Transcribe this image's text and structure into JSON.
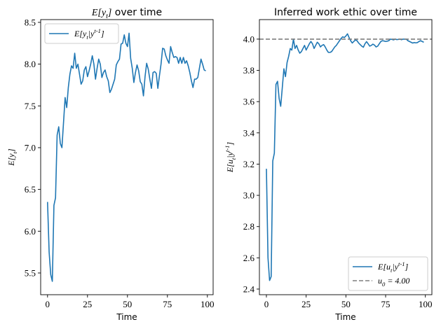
{
  "chart_data": [
    {
      "type": "line",
      "title": "E[y_t] over time",
      "xlabel": "Time",
      "ylabel": "E[y_t]",
      "xlim": [
        -4.3,
        103.6
      ],
      "ylim": [
        5.24,
        8.533
      ],
      "xticks": [
        0,
        25,
        50,
        75,
        100
      ],
      "yticks": [
        5.5,
        6.0,
        6.5,
        7.0,
        7.5,
        8.0,
        8.5
      ],
      "xtick_labels": [
        "0",
        "25",
        "50",
        "75",
        "100"
      ],
      "ytick_labels": [
        "5.5",
        "6.0",
        "6.5",
        "7.0",
        "7.5",
        "8.0",
        "8.5"
      ],
      "grid": false,
      "legend": "upper-left",
      "series": [
        {
          "name": "E[y_t|y^{t-1}]",
          "color": "#1f77b4",
          "style": "solid",
          "x_start": 0,
          "values": [
            6.35,
            5.75,
            5.48,
            5.4,
            6.31,
            6.4,
            7.15,
            7.25,
            7.05,
            7.0,
            7.3,
            7.6,
            7.48,
            7.72,
            7.88,
            7.98,
            7.95,
            8.13,
            7.95,
            8.0,
            7.88,
            7.76,
            7.8,
            7.93,
            7.97,
            7.85,
            7.92,
            8.0,
            8.1,
            8.0,
            7.82,
            7.95,
            8.06,
            8.0,
            7.84,
            7.9,
            7.93,
            7.85,
            7.8,
            7.66,
            7.7,
            7.76,
            7.82,
            7.99,
            8.03,
            8.06,
            8.24,
            8.25,
            8.35,
            8.25,
            8.21,
            8.37,
            8.07,
            7.95,
            7.78,
            7.9,
            7.99,
            7.92,
            7.79,
            7.76,
            7.62,
            7.85,
            8.01,
            7.94,
            7.82,
            7.71,
            7.9,
            7.91,
            7.89,
            7.71,
            7.86,
            8.0,
            8.19,
            8.18,
            8.1,
            8.05,
            8.01,
            8.21,
            8.14,
            8.08,
            8.09,
            8.08,
            8.01,
            8.08,
            8.01,
            8.08,
            8.01,
            8.04,
            7.98,
            7.9,
            7.8,
            7.72,
            7.82,
            7.82,
            7.84,
            7.95,
            8.06,
            8.0,
            7.93,
            7.92
          ]
        }
      ]
    },
    {
      "type": "line",
      "title": "Inferred work ethic over time",
      "xlabel": "Time",
      "ylabel": "E[u_t|y^{t-1}]",
      "xlim": [
        -4.4,
        104.1
      ],
      "ylim": [
        2.364,
        4.125
      ],
      "xticks": [
        0,
        25,
        50,
        75,
        100
      ],
      "yticks": [
        2.4,
        2.6,
        2.8,
        3.0,
        3.2,
        3.4,
        3.6,
        3.8,
        4.0
      ],
      "xtick_labels": [
        "0",
        "25",
        "50",
        "75",
        "100"
      ],
      "ytick_labels": [
        "2.4",
        "2.6",
        "2.8",
        "3.0",
        "3.2",
        "3.4",
        "3.6",
        "3.8",
        "4.0"
      ],
      "grid": false,
      "legend": "lower-right",
      "series": [
        {
          "name": "E[u_t|y^{t-1}]",
          "color": "#1f77b4",
          "style": "solid",
          "x_start": 0,
          "values": [
            3.17,
            2.6,
            2.455,
            2.48,
            3.22,
            3.27,
            3.71,
            3.73,
            3.62,
            3.57,
            3.69,
            3.81,
            3.76,
            3.85,
            3.89,
            3.94,
            3.93,
            4.0,
            3.94,
            3.96,
            3.93,
            3.91,
            3.92,
            3.94,
            3.96,
            3.93,
            3.95,
            3.97,
            3.985,
            3.97,
            3.94,
            3.96,
            3.98,
            3.97,
            3.95,
            3.96,
            3.965,
            3.95,
            3.93,
            3.915,
            3.915,
            3.92,
            3.935,
            3.95,
            3.96,
            3.975,
            3.99,
            4.005,
            4.015,
            4.01,
            4.02,
            4.034,
            4.01,
            3.99,
            3.975,
            3.985,
            3.995,
            3.99,
            3.975,
            3.965,
            3.955,
            3.948,
            3.97,
            3.984,
            3.97,
            3.955,
            3.96,
            3.968,
            3.962,
            3.95,
            3.955,
            3.97,
            3.985,
            3.99,
            3.988,
            3.985,
            3.987,
            3.99,
            4.0,
            3.998,
            3.995,
            4.0,
            3.997,
            3.998,
            4.0,
            3.996,
            4.0,
            4.0,
            4.0,
            3.99,
            3.985,
            3.98,
            3.975,
            3.978,
            3.976,
            3.978,
            3.985,
            3.99,
            3.985,
            3.98
          ]
        },
        {
          "name": "u_0 = 4.00",
          "color": "#7f7f7f",
          "style": "dashed",
          "hline": 4.0
        }
      ]
    }
  ]
}
